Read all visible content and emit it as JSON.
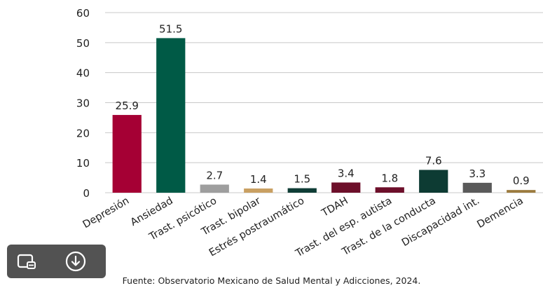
{
  "chart_data": {
    "type": "bar",
    "title": "",
    "xlabel": "",
    "ylabel": "",
    "ylim": [
      0,
      60
    ],
    "yticks": [
      0,
      10,
      20,
      30,
      40,
      50,
      60
    ],
    "grid": true,
    "categories": [
      "Depresión",
      "Ansiedad",
      "Trast. psicótico",
      "Trast. bipolar",
      "Estrés postraumático",
      "TDAH",
      "Trast. del esp. autista",
      "Trast. de la conducta",
      "Discapacidad int.",
      "Demencia"
    ],
    "values": [
      25.9,
      51.5,
      2.7,
      1.4,
      1.5,
      3.4,
      1.8,
      7.6,
      3.3,
      0.9
    ],
    "value_labels": [
      "25.9",
      "51.5",
      "2.7",
      "1.4",
      "1.5",
      "3.4",
      "1.8",
      "7.6",
      "3.3",
      "0.9"
    ],
    "colors": [
      "#a50034",
      "#005a46",
      "#9e9e9e",
      "#c9a062",
      "#0f3d36",
      "#6d0f2a",
      "#6d0f2a",
      "#0d3b33",
      "#5a5a5a",
      "#9c7b3f"
    ]
  },
  "source_note": "Fuente: Observatorio Mexicano de Salud Mental y Adicciones, 2024.",
  "toolbar": {
    "icons": [
      "image-settings-icon",
      "download-icon"
    ]
  }
}
